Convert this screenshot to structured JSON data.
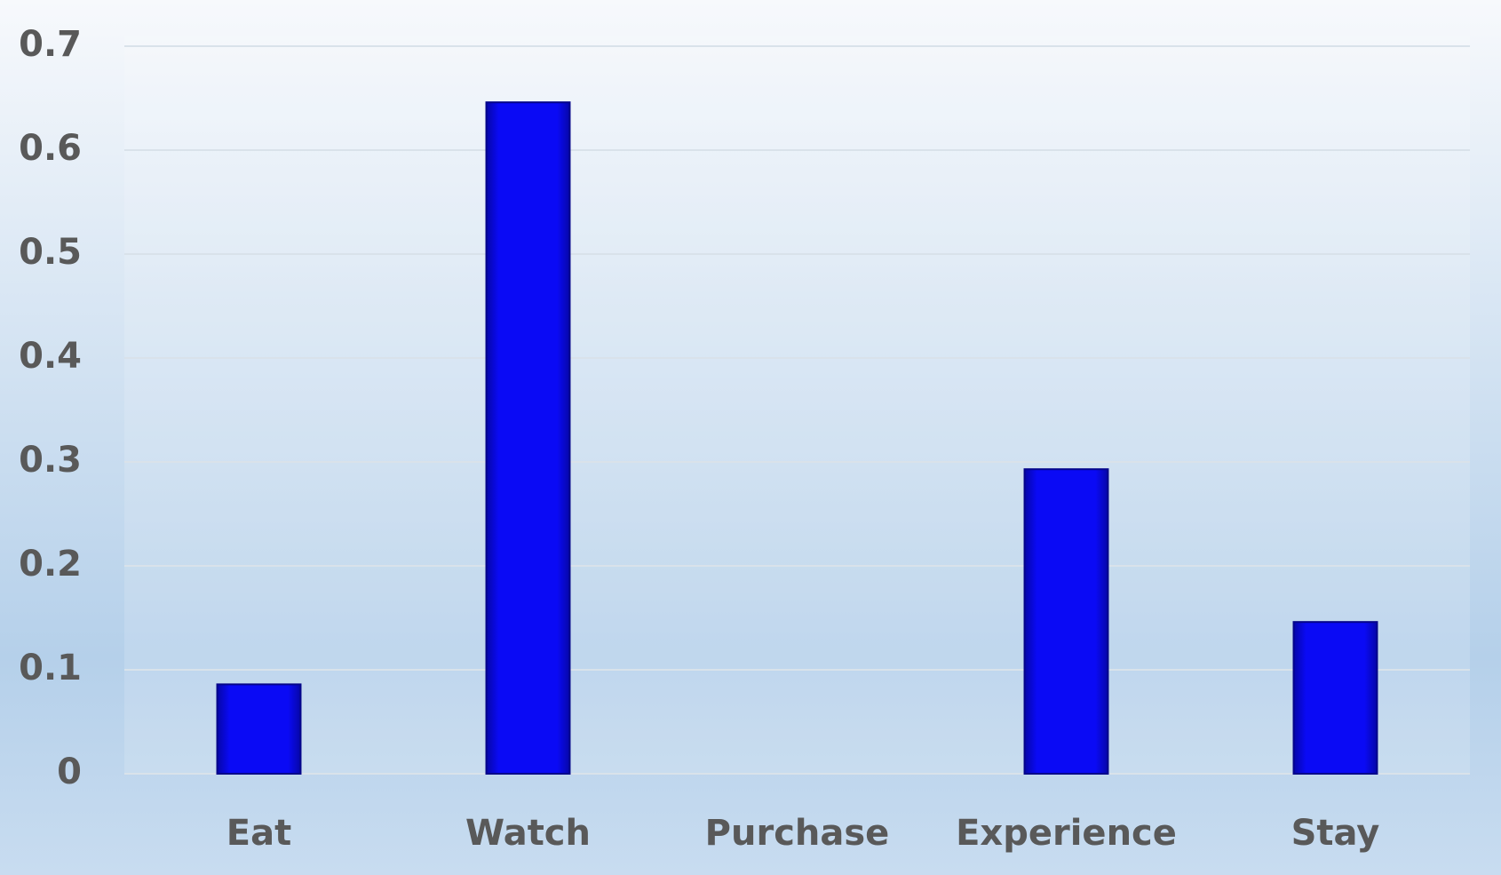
{
  "chart_data": {
    "type": "bar",
    "categories": [
      "Eat",
      "Watch",
      "Purchase",
      "Experience",
      "Stay"
    ],
    "values": [
      0.086,
      0.646,
      0,
      0.293,
      0.146
    ],
    "color": "#0a0af5",
    "ylim": [
      0,
      0.7
    ],
    "yticks": [
      0,
      0.1,
      0.2,
      0.3,
      0.4,
      0.5,
      0.6,
      0.7
    ],
    "grid": true
  }
}
